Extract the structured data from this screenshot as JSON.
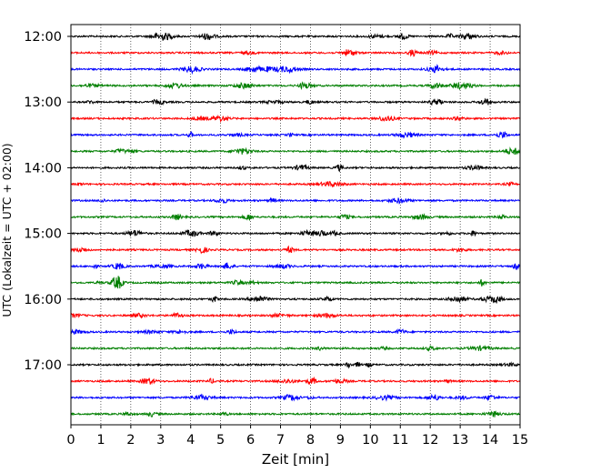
{
  "chart_data": {
    "type": "line",
    "title": "",
    "xlabel": "Zeit  [min]",
    "ylabel": "UTC (Lokalzeit = UTC + 02:00)",
    "xlim": [
      0,
      15
    ],
    "x_ticks": [
      0,
      1,
      2,
      3,
      4,
      5,
      6,
      7,
      8,
      9,
      10,
      11,
      12,
      13,
      14,
      15
    ],
    "x_tick_labels": [
      "0",
      "1",
      "2",
      "3",
      "4",
      "5",
      "6",
      "7",
      "8",
      "9",
      "10",
      "11",
      "12",
      "13",
      "14",
      "15"
    ],
    "y_tick_labels": [
      "12:00",
      "13:00",
      "14:00",
      "15:00",
      "16:00",
      "17:00"
    ],
    "grid": "vertical dotted lines at each minute",
    "trace_interval_minutes": 15,
    "trace_colors_cycle": [
      "#000000",
      "#ff0000",
      "#0000ff",
      "#007f00"
    ],
    "traces": [
      {
        "start": "12:00",
        "color": "#000000"
      },
      {
        "start": "12:15",
        "color": "#ff0000"
      },
      {
        "start": "12:30",
        "color": "#0000ff"
      },
      {
        "start": "12:45",
        "color": "#007f00"
      },
      {
        "start": "13:00",
        "color": "#000000"
      },
      {
        "start": "13:15",
        "color": "#ff0000"
      },
      {
        "start": "13:30",
        "color": "#0000ff"
      },
      {
        "start": "13:45",
        "color": "#007f00"
      },
      {
        "start": "14:00",
        "color": "#000000"
      },
      {
        "start": "14:15",
        "color": "#ff0000"
      },
      {
        "start": "14:30",
        "color": "#0000ff"
      },
      {
        "start": "14:45",
        "color": "#007f00"
      },
      {
        "start": "15:00",
        "color": "#000000"
      },
      {
        "start": "15:15",
        "color": "#ff0000"
      },
      {
        "start": "15:30",
        "color": "#0000ff"
      },
      {
        "start": "15:45",
        "color": "#007f00"
      },
      {
        "start": "16:00",
        "color": "#000000"
      },
      {
        "start": "16:15",
        "color": "#ff0000"
      },
      {
        "start": "16:30",
        "color": "#0000ff"
      },
      {
        "start": "16:45",
        "color": "#007f00"
      },
      {
        "start": "17:00",
        "color": "#000000"
      },
      {
        "start": "17:15",
        "color": "#ff0000"
      },
      {
        "start": "17:30",
        "color": "#0000ff"
      },
      {
        "start": "17:45",
        "color": "#007f00"
      }
    ]
  }
}
